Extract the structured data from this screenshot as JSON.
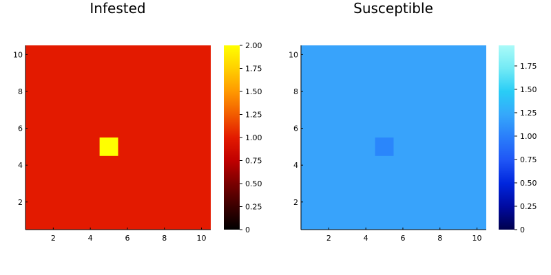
{
  "chart_data": [
    {
      "type": "heatmap",
      "title": "Infested",
      "xlabel": "",
      "ylabel": "",
      "xlim": [
        0.5,
        10.5
      ],
      "ylim": [
        0.5,
        10.5
      ],
      "x_ticks": [
        "2",
        "4",
        "6",
        "8",
        "10"
      ],
      "y_ticks": [
        "2",
        "4",
        "6",
        "8",
        "10"
      ],
      "grid": false,
      "colormap": "heat",
      "colorbar": {
        "range": [
          0,
          2
        ],
        "ticks": [
          "0",
          "0.25",
          "0.50",
          "0.75",
          "1.00",
          "1.25",
          "1.50",
          "1.75",
          "2.00"
        ],
        "colors": [
          "#000000",
          "#3a0000",
          "#7a0000",
          "#c00000",
          "#e31a00",
          "#f25c00",
          "#ff9900",
          "#ffd000",
          "#ffff00"
        ]
      },
      "grid_size": [
        10,
        10
      ],
      "background_value": 1,
      "background_color": "#e31a00",
      "cells": [
        {
          "x": 5,
          "y": 5,
          "value": 2,
          "color": "#ffff00"
        }
      ]
    },
    {
      "type": "heatmap",
      "title": "Susceptible",
      "xlabel": "",
      "ylabel": "",
      "xlim": [
        0.5,
        10.5
      ],
      "ylim": [
        0.5,
        10.5
      ],
      "x_ticks": [
        "2",
        "4",
        "6",
        "8",
        "10"
      ],
      "y_ticks": [
        "2",
        "4",
        "6",
        "8",
        "10"
      ],
      "grid": false,
      "colormap": "ice",
      "colorbar": {
        "range": [
          0,
          1.97
        ],
        "ticks": [
          "0",
          "0.25",
          "0.50",
          "0.75",
          "1.00",
          "1.25",
          "1.50",
          "1.75"
        ],
        "colors": [
          "#00004d",
          "#000aa0",
          "#0026dd",
          "#1f55f5",
          "#2a7dfa",
          "#35a8fb",
          "#29cdf6",
          "#73eaf5",
          "#aafaf8"
        ]
      },
      "grid_size": [
        10,
        10
      ],
      "background_value": 1.37,
      "background_color": "#38a3fb",
      "cells": [
        {
          "x": 5,
          "y": 5,
          "value": 1.1,
          "color": "#2a86fb"
        }
      ]
    }
  ]
}
